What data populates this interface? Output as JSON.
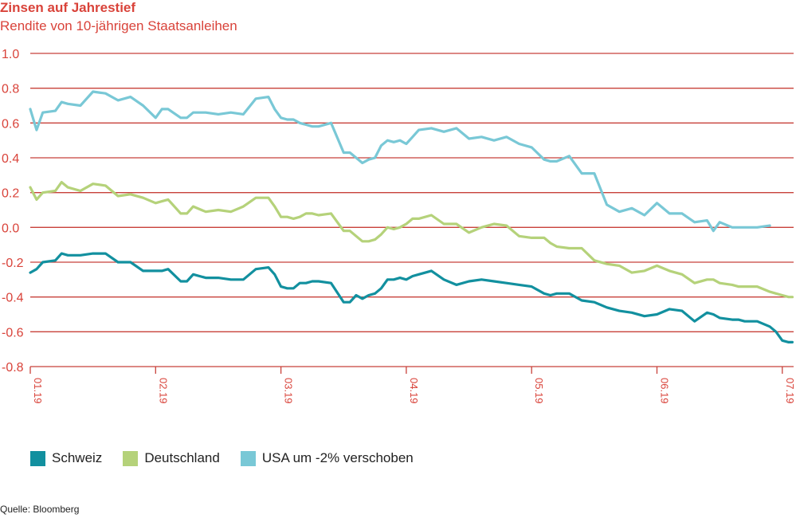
{
  "title": "Zinsen auf Jahrestief",
  "subtitle": "Rendite von 10-jährigen Staatsanleihen",
  "source": "Quelle: Bloomberg",
  "colors": {
    "text": "#d9433a",
    "grid": "#c8413a",
    "schweiz": "#12909f",
    "deutschland": "#b5d27a",
    "usa": "#79c8d6"
  },
  "chart_data": {
    "type": "line",
    "title": "Zinsen auf Jahrestief",
    "subtitle": "Rendite von 10-jährigen Staatsanleihen",
    "ylim": [
      -0.8,
      1.0
    ],
    "yticks": [
      "1.0",
      "0.8",
      "0.6",
      "0.4",
      "0.2",
      "0.0",
      "-0.2",
      "-0.4",
      "-0.6",
      "-0.8"
    ],
    "ytick_values": [
      1.0,
      0.8,
      0.6,
      0.4,
      0.2,
      0.0,
      -0.2,
      -0.4,
      -0.6,
      -0.8
    ],
    "xticks": [
      "01.19",
      "02.19",
      "03.19",
      "04.19",
      "05.19",
      "06.19",
      "07.19"
    ],
    "xtick_positions": [
      0,
      1,
      2,
      3,
      4,
      5,
      6
    ],
    "xlim": [
      0,
      6.08
    ],
    "grid": true,
    "legend_position": "bottom-left",
    "series": [
      {
        "name": "Schweiz",
        "color": "#12909f",
        "x": [
          0,
          0.05,
          0.1,
          0.2,
          0.25,
          0.3,
          0.4,
          0.5,
          0.6,
          0.7,
          0.8,
          0.9,
          1.0,
          1.05,
          1.1,
          1.2,
          1.25,
          1.3,
          1.4,
          1.5,
          1.6,
          1.7,
          1.8,
          1.9,
          1.95,
          2.0,
          2.05,
          2.1,
          2.15,
          2.2,
          2.25,
          2.3,
          2.4,
          2.5,
          2.55,
          2.6,
          2.65,
          2.7,
          2.75,
          2.8,
          2.85,
          2.9,
          2.95,
          3.0,
          3.05,
          3.1,
          3.2,
          3.3,
          3.4,
          3.5,
          3.6,
          3.7,
          3.8,
          3.9,
          4.0,
          4.1,
          4.15,
          4.2,
          4.3,
          4.4,
          4.5,
          4.6,
          4.7,
          4.8,
          4.9,
          5.0,
          5.1,
          5.2,
          5.3,
          5.4,
          5.45,
          5.5,
          5.6,
          5.65,
          5.7,
          5.8,
          5.9,
          5.95,
          6.0,
          6.05,
          6.08
        ],
        "values": [
          -0.26,
          -0.24,
          -0.2,
          -0.19,
          -0.15,
          -0.16,
          -0.16,
          -0.15,
          -0.15,
          -0.2,
          -0.2,
          -0.25,
          -0.25,
          -0.25,
          -0.24,
          -0.31,
          -0.31,
          -0.27,
          -0.29,
          -0.29,
          -0.3,
          -0.3,
          -0.24,
          -0.23,
          -0.27,
          -0.34,
          -0.35,
          -0.35,
          -0.32,
          -0.32,
          -0.31,
          -0.31,
          -0.32,
          -0.43,
          -0.43,
          -0.39,
          -0.41,
          -0.39,
          -0.38,
          -0.35,
          -0.3,
          -0.3,
          -0.29,
          -0.3,
          -0.28,
          -0.27,
          -0.25,
          -0.3,
          -0.33,
          -0.31,
          -0.3,
          -0.31,
          -0.32,
          -0.33,
          -0.34,
          -0.38,
          -0.39,
          -0.38,
          -0.38,
          -0.42,
          -0.43,
          -0.46,
          -0.48,
          -0.49,
          -0.51,
          -0.5,
          -0.47,
          -0.48,
          -0.54,
          -0.49,
          -0.5,
          -0.52,
          -0.53,
          -0.53,
          -0.54,
          -0.54,
          -0.57,
          -0.6,
          -0.65,
          -0.66,
          -0.66
        ]
      },
      {
        "name": "Deutschland",
        "color": "#b5d27a",
        "x": [
          0,
          0.05,
          0.1,
          0.2,
          0.25,
          0.3,
          0.4,
          0.5,
          0.6,
          0.7,
          0.8,
          0.9,
          1.0,
          1.05,
          1.1,
          1.2,
          1.25,
          1.3,
          1.4,
          1.5,
          1.6,
          1.7,
          1.8,
          1.9,
          1.95,
          2.0,
          2.05,
          2.1,
          2.15,
          2.2,
          2.25,
          2.3,
          2.4,
          2.5,
          2.55,
          2.6,
          2.65,
          2.7,
          2.75,
          2.8,
          2.85,
          2.9,
          2.95,
          3.0,
          3.05,
          3.1,
          3.2,
          3.3,
          3.4,
          3.5,
          3.6,
          3.7,
          3.8,
          3.9,
          4.0,
          4.1,
          4.15,
          4.2,
          4.3,
          4.4,
          4.5,
          4.6,
          4.7,
          4.8,
          4.9,
          5.0,
          5.1,
          5.2,
          5.3,
          5.4,
          5.45,
          5.5,
          5.6,
          5.65,
          5.7,
          5.8,
          5.9,
          5.95,
          6.0,
          6.05,
          6.08
        ],
        "values": [
          0.23,
          0.16,
          0.2,
          0.21,
          0.26,
          0.23,
          0.21,
          0.25,
          0.24,
          0.18,
          0.19,
          0.17,
          0.14,
          0.15,
          0.16,
          0.08,
          0.08,
          0.12,
          0.09,
          0.1,
          0.09,
          0.12,
          0.17,
          0.17,
          0.12,
          0.06,
          0.06,
          0.05,
          0.06,
          0.08,
          0.08,
          0.07,
          0.08,
          -0.02,
          -0.02,
          -0.05,
          -0.08,
          -0.08,
          -0.07,
          -0.04,
          0.0,
          -0.01,
          0.0,
          0.02,
          0.05,
          0.05,
          0.07,
          0.02,
          0.02,
          -0.03,
          0.0,
          0.02,
          0.01,
          -0.05,
          -0.06,
          -0.06,
          -0.09,
          -0.11,
          -0.12,
          -0.12,
          -0.19,
          -0.21,
          -0.22,
          -0.26,
          -0.25,
          -0.22,
          -0.25,
          -0.27,
          -0.32,
          -0.3,
          -0.3,
          -0.32,
          -0.33,
          -0.34,
          -0.34,
          -0.34,
          -0.37,
          -0.38,
          -0.39,
          -0.4,
          -0.4
        ]
      },
      {
        "name": "USA um -2% verschoben",
        "color": "#79c8d6",
        "x": [
          0,
          0.05,
          0.1,
          0.2,
          0.25,
          0.3,
          0.4,
          0.5,
          0.6,
          0.7,
          0.8,
          0.9,
          1.0,
          1.05,
          1.1,
          1.2,
          1.25,
          1.3,
          1.4,
          1.5,
          1.6,
          1.7,
          1.8,
          1.9,
          1.95,
          2.0,
          2.05,
          2.1,
          2.15,
          2.2,
          2.25,
          2.3,
          2.4,
          2.5,
          2.55,
          2.6,
          2.65,
          2.7,
          2.75,
          2.8,
          2.85,
          2.9,
          2.95,
          3.0,
          3.05,
          3.1,
          3.2,
          3.3,
          3.4,
          3.5,
          3.6,
          3.7,
          3.8,
          3.9,
          4.0,
          4.1,
          4.15,
          4.2,
          4.3,
          4.4,
          4.5,
          4.6,
          4.7,
          4.8,
          4.9,
          5.0,
          5.1,
          5.2,
          5.3,
          5.4,
          5.45,
          5.5,
          5.6,
          5.65,
          5.7,
          5.8,
          5.9
        ],
        "values": [
          0.68,
          0.56,
          0.66,
          0.67,
          0.72,
          0.71,
          0.7,
          0.78,
          0.77,
          0.73,
          0.75,
          0.7,
          0.63,
          0.68,
          0.68,
          0.63,
          0.63,
          0.66,
          0.66,
          0.65,
          0.66,
          0.65,
          0.74,
          0.75,
          0.68,
          0.63,
          0.62,
          0.62,
          0.6,
          0.59,
          0.58,
          0.58,
          0.6,
          0.43,
          0.43,
          0.4,
          0.37,
          0.39,
          0.4,
          0.47,
          0.5,
          0.49,
          0.5,
          0.48,
          0.52,
          0.56,
          0.57,
          0.55,
          0.57,
          0.51,
          0.52,
          0.5,
          0.52,
          0.48,
          0.46,
          0.39,
          0.38,
          0.38,
          0.41,
          0.31,
          0.31,
          0.13,
          0.09,
          0.11,
          0.07,
          0.14,
          0.08,
          0.08,
          0.03,
          0.04,
          -0.02,
          0.03,
          0.0,
          0.0,
          0.0,
          0.0,
          0.01
        ]
      }
    ]
  }
}
